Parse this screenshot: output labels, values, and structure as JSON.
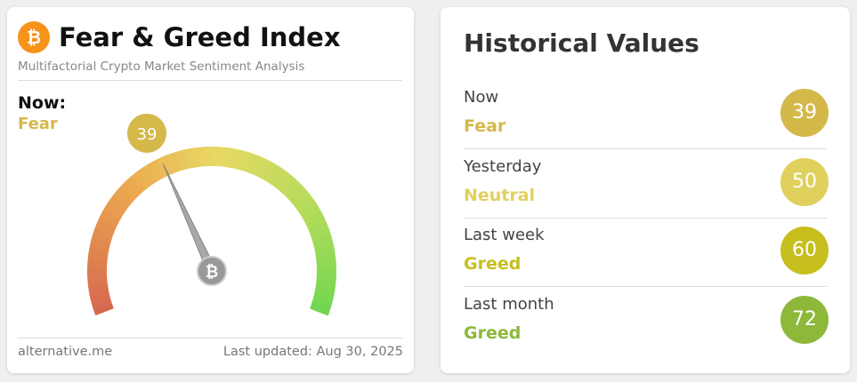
{
  "left": {
    "title": "Fear & Greed Index",
    "subtitle": "Multifactorial Crypto Market Sentiment Analysis",
    "now_label": "Now:",
    "classification": "Fear",
    "classification_color": "#d4b84a",
    "gauge": {
      "value": 39,
      "lim": [
        0,
        100
      ],
      "color": "#d4b84a"
    },
    "footer_source": "alternative.me",
    "footer_updated": "Last updated: Aug 30, 2025"
  },
  "right": {
    "title": "Historical Values",
    "rows": [
      {
        "label": "Now",
        "classification": "Fear",
        "value": 39,
        "color": "#d4b84a"
      },
      {
        "label": "Yesterday",
        "classification": "Neutral",
        "value": 50,
        "color": "#e0d05e"
      },
      {
        "label": "Last week",
        "classification": "Greed",
        "value": 60,
        "color": "#c6bf1e"
      },
      {
        "label": "Last month",
        "classification": "Greed",
        "value": 72,
        "color": "#8db83a"
      }
    ]
  }
}
